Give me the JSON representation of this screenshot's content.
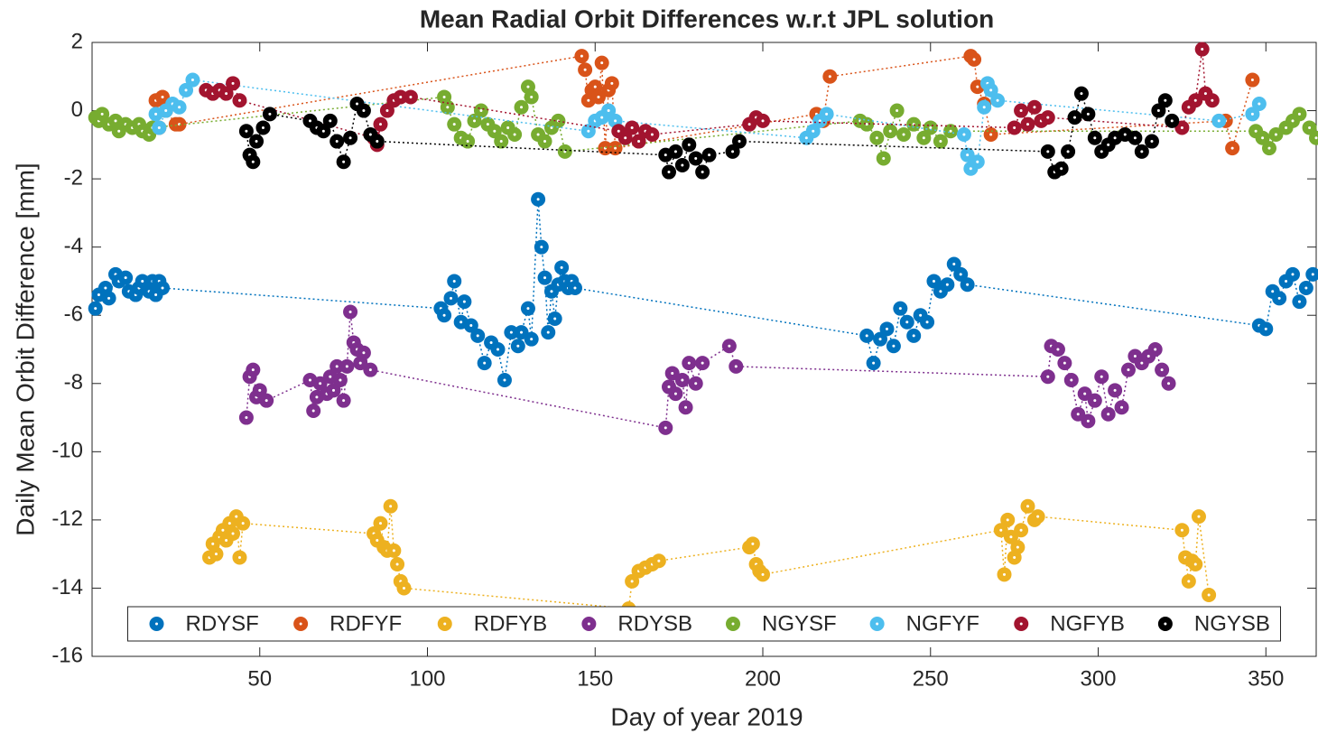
{
  "chart_data": {
    "type": "line",
    "title": "Mean Radial Orbit Differences w.r.t JPL solution",
    "x_label": "Day of year 2019",
    "y_label": "Daily Mean Orbit Difference [mm]",
    "xlim": [
      0,
      365
    ],
    "xticks": [
      50,
      100,
      150,
      200,
      250,
      300,
      350
    ],
    "ylim": [
      -16,
      2
    ],
    "yticks": [
      -16,
      -14,
      -12,
      -10,
      -8,
      -6,
      -4,
      -2,
      0,
      2
    ],
    "grid": false,
    "legend": "bottom",
    "line_style": "dotted",
    "series": [
      {
        "name": "RDYSF",
        "color": "#0072BD",
        "x": [
          1,
          2,
          4,
          5,
          7,
          8,
          10,
          11,
          13,
          14,
          15,
          17,
          18,
          19,
          20,
          21,
          104,
          105,
          107,
          108,
          110,
          111,
          113,
          115,
          117,
          119,
          121,
          123,
          125,
          127,
          128,
          130,
          131,
          133,
          134,
          135,
          136,
          137,
          138,
          139,
          140,
          141,
          142,
          143,
          144,
          231,
          233,
          235,
          237,
          239,
          241,
          243,
          245,
          247,
          249,
          251,
          253,
          255,
          257,
          259,
          261,
          348,
          350,
          352,
          354,
          356,
          358,
          360,
          362,
          364
        ],
        "values": [
          -5.8,
          -5.4,
          -5.2,
          -5.5,
          -4.8,
          -5.0,
          -4.9,
          -5.3,
          -5.4,
          -5.2,
          -5.0,
          -5.3,
          -5.0,
          -5.4,
          -5.0,
          -5.2,
          -5.8,
          -6.0,
          -5.5,
          -5.0,
          -6.2,
          -5.6,
          -6.3,
          -6.6,
          -7.4,
          -6.8,
          -7.0,
          -7.9,
          -6.5,
          -6.9,
          -6.5,
          -5.8,
          -6.7,
          -2.6,
          -4.0,
          -4.9,
          -6.5,
          -5.3,
          -6.1,
          -5.1,
          -4.6,
          -5.0,
          -5.2,
          -5.0,
          -5.2,
          -6.6,
          -7.4,
          -6.7,
          -6.4,
          -6.9,
          -5.8,
          -6.2,
          -6.6,
          -6.0,
          -6.2,
          -5.0,
          -5.3,
          -5.1,
          -4.5,
          -4.8,
          -5.1,
          -6.3,
          -6.4,
          -5.3,
          -5.5,
          -5.0,
          -4.8,
          -5.6,
          -5.2,
          -4.8
        ]
      },
      {
        "name": "RDFYF",
        "color": "#D95319",
        "x": [
          19,
          20,
          21,
          22,
          25,
          26,
          146,
          147,
          148,
          149,
          150,
          151,
          152,
          153,
          154,
          155,
          156,
          216,
          218,
          220,
          262,
          263,
          264,
          266,
          268,
          338,
          340,
          346
        ],
        "values": [
          0.3,
          -0.5,
          0.4,
          0,
          -0.4,
          -0.4,
          1.6,
          1.2,
          0.3,
          0.6,
          0.7,
          0.4,
          1.4,
          -1.1,
          0.6,
          0.8,
          -1.1,
          -0.1,
          -0.3,
          1.0,
          1.6,
          1.5,
          0.7,
          0.2,
          -0.7,
          -0.3,
          -1.1,
          0.9
        ]
      },
      {
        "name": "RDFYB",
        "color": "#EDB120",
        "x": [
          35,
          36,
          37,
          38,
          39,
          40,
          41,
          42,
          43,
          44,
          45,
          84,
          85,
          86,
          87,
          88,
          89,
          90,
          91,
          92,
          93,
          160,
          161,
          163,
          165,
          167,
          169,
          196,
          197,
          198,
          199,
          200,
          271,
          272,
          273,
          274,
          275,
          276,
          277,
          279,
          281,
          282,
          325,
          326,
          327,
          328,
          329,
          330,
          333
        ],
        "values": [
          -13.1,
          -12.7,
          -13.0,
          -12.5,
          -12.3,
          -12.6,
          -12.1,
          -12.4,
          -11.9,
          -13.1,
          -12.1,
          -12.4,
          -12.6,
          -12.1,
          -12.8,
          -12.9,
          -11.6,
          -12.9,
          -13.3,
          -13.8,
          -14.0,
          -14.6,
          -13.8,
          -13.5,
          -13.4,
          -13.3,
          -13.2,
          -12.8,
          -12.7,
          -13.3,
          -13.5,
          -13.6,
          -12.3,
          -13.6,
          -12.0,
          -12.5,
          -13.1,
          -12.8,
          -12.3,
          -11.6,
          -12.0,
          -11.9,
          -12.3,
          -13.1,
          -13.8,
          -13.2,
          -13.3,
          -11.9,
          -14.2
        ]
      },
      {
        "name": "RDYSB",
        "color": "#7E2F8E",
        "x": [
          46,
          47,
          48,
          49,
          50,
          52,
          65,
          66,
          67,
          68,
          70,
          71,
          72,
          73,
          74,
          75,
          76,
          77,
          78,
          79,
          80,
          81,
          83,
          171,
          172,
          173,
          174,
          176,
          177,
          178,
          180,
          182,
          190,
          192,
          285,
          286,
          288,
          290,
          292,
          294,
          296,
          297,
          299,
          301,
          303,
          305,
          307,
          309,
          311,
          313,
          315,
          317,
          319,
          321
        ],
        "values": [
          -9.0,
          -7.8,
          -7.6,
          -8.4,
          -8.2,
          -8.5,
          -7.9,
          -8.8,
          -8.4,
          -8.0,
          -8.3,
          -7.8,
          -8.2,
          -7.5,
          -7.9,
          -8.5,
          -7.5,
          -5.9,
          -6.8,
          -7.0,
          -7.4,
          -7.1,
          -7.6,
          -9.3,
          -8.1,
          -7.7,
          -8.3,
          -7.9,
          -8.7,
          -7.4,
          -8.0,
          -7.4,
          -6.9,
          -7.5,
          -7.8,
          -6.9,
          -7.0,
          -7.4,
          -7.9,
          -8.9,
          -8.3,
          -9.1,
          -8.5,
          -7.8,
          -8.9,
          -8.2,
          -8.7,
          -7.6,
          -7.2,
          -7.4,
          -7.2,
          -7.0,
          -7.6,
          -8.0
        ]
      },
      {
        "name": "NGYSF",
        "color": "#77AC30",
        "x": [
          1,
          2,
          3,
          5,
          7,
          8,
          10,
          12,
          14,
          15,
          17,
          18,
          105,
          106,
          108,
          110,
          112,
          114,
          116,
          118,
          120,
          122,
          124,
          126,
          128,
          130,
          131,
          133,
          135,
          137,
          139,
          141,
          229,
          231,
          234,
          236,
          238,
          240,
          242,
          245,
          248,
          250,
          253,
          256,
          347,
          349,
          351,
          353,
          356,
          358,
          360,
          363,
          365
        ],
        "values": [
          -0.2,
          -0.3,
          -0.1,
          -0.4,
          -0.3,
          -0.6,
          -0.4,
          -0.5,
          -0.4,
          -0.6,
          -0.7,
          -0.5,
          0.4,
          0.1,
          -0.4,
          -0.8,
          -0.9,
          -0.3,
          0,
          -0.4,
          -0.6,
          -0.9,
          -0.5,
          -0.7,
          0.1,
          0.7,
          0.4,
          -0.7,
          -0.9,
          -0.5,
          -0.3,
          -1.2,
          -0.3,
          -0.4,
          -0.8,
          -1.4,
          -0.6,
          0,
          -0.7,
          -0.4,
          -0.8,
          -0.5,
          -0.9,
          -0.6,
          -0.6,
          -0.8,
          -1.1,
          -0.7,
          -0.5,
          -0.3,
          -0.1,
          -0.5,
          -0.8
        ]
      },
      {
        "name": "NGFYF",
        "color": "#4DBEEE",
        "x": [
          19,
          20,
          22,
          24,
          26,
          28,
          30,
          148,
          150,
          152,
          154,
          156,
          213,
          215,
          217,
          219,
          260,
          261,
          262,
          264,
          266,
          267,
          268,
          270,
          336,
          346,
          348
        ],
        "values": [
          -0.1,
          -0.5,
          0,
          0.2,
          0.1,
          0.6,
          0.9,
          -0.6,
          -0.3,
          -0.2,
          0,
          -0.3,
          -0.8,
          -0.6,
          -0.3,
          -0.1,
          -0.7,
          -1.3,
          -1.7,
          -1.5,
          0.1,
          0.8,
          0.6,
          0.3,
          -0.3,
          -0.1,
          0.2
        ]
      },
      {
        "name": "NGFYB",
        "color": "#A2142F",
        "x": [
          34,
          36,
          38,
          40,
          42,
          44,
          84,
          85,
          86,
          88,
          90,
          92,
          95,
          157,
          159,
          161,
          163,
          165,
          167,
          196,
          198,
          200,
          275,
          277,
          279,
          281,
          283,
          285,
          325,
          327,
          329,
          331,
          332,
          334
        ],
        "values": [
          0.6,
          0.5,
          0.6,
          0.5,
          0.8,
          0.3,
          -0.8,
          -1.0,
          -0.4,
          0,
          0.3,
          0.4,
          0.4,
          -0.6,
          -0.8,
          -0.5,
          -0.9,
          -0.6,
          -0.7,
          -0.4,
          -0.2,
          -0.3,
          -0.5,
          0,
          -0.4,
          0.1,
          -0.3,
          -0.2,
          -0.5,
          0.1,
          0.3,
          1.8,
          0.5,
          0.3
        ]
      },
      {
        "name": "NGYSB",
        "color": "#000000",
        "x": [
          46,
          47,
          48,
          49,
          51,
          53,
          65,
          67,
          69,
          71,
          73,
          75,
          77,
          79,
          81,
          83,
          85,
          171,
          172,
          174,
          176,
          178,
          180,
          182,
          184,
          191,
          193,
          285,
          287,
          289,
          291,
          293,
          295,
          297,
          299,
          301,
          303,
          305,
          308,
          311,
          313,
          316,
          318,
          320,
          322
        ],
        "values": [
          -0.6,
          -1.3,
          -1.5,
          -0.9,
          -0.5,
          -0.1,
          -0.3,
          -0.5,
          -0.6,
          -0.3,
          -0.9,
          -1.5,
          -0.8,
          0.2,
          0,
          -0.7,
          -0.9,
          -1.3,
          -1.8,
          -1.2,
          -1.6,
          -1.0,
          -1.4,
          -1.8,
          -1.3,
          -1.2,
          -0.9,
          -1.2,
          -1.8,
          -1.7,
          -1.2,
          -0.2,
          0.5,
          -0.1,
          -0.8,
          -1.2,
          -1.0,
          -0.8,
          -0.7,
          -0.8,
          -1.2,
          -0.9,
          0,
          0.3,
          -0.3
        ]
      }
    ]
  }
}
